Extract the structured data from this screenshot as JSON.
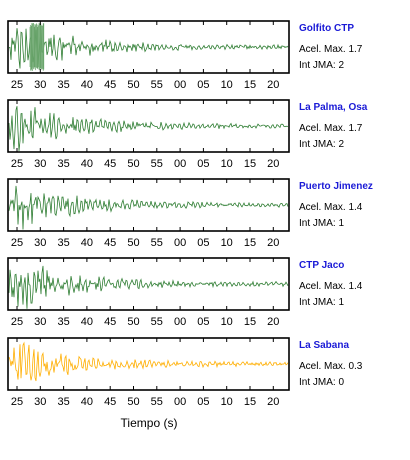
{
  "chart_data": [
    {
      "type": "line",
      "station": "Golfito CTP",
      "accel_label": "Acel. Max. 1.7",
      "jma_label": "Int JMA: 2",
      "color": "#2e7d32",
      "burst": "strong",
      "x_tick_labels": [
        "25",
        "30",
        "35",
        "40",
        "45",
        "50",
        "55",
        "00",
        "05",
        "10",
        "15",
        "20"
      ]
    },
    {
      "type": "line",
      "station": "La Palma, Osa",
      "accel_label": "Acel. Max. 1.7",
      "jma_label": "Int JMA: 2",
      "color": "#2e7d32",
      "burst": "medium",
      "x_tick_labels": [
        "25",
        "30",
        "35",
        "40",
        "45",
        "50",
        "55",
        "00",
        "05",
        "10",
        "15",
        "20"
      ]
    },
    {
      "type": "line",
      "station": "Puerto Jimenez",
      "accel_label": "Acel. Max. 1.4",
      "jma_label": "Int JMA: 1",
      "color": "#2e7d32",
      "burst": "medium",
      "x_tick_labels": [
        "25",
        "30",
        "35",
        "40",
        "45",
        "50",
        "55",
        "00",
        "05",
        "10",
        "15",
        "20"
      ]
    },
    {
      "type": "line",
      "station": "CTP Jaco",
      "accel_label": "Acel. Max. 1.4",
      "jma_label": "Int JMA: 1",
      "color": "#2e7d32",
      "burst": "medium",
      "x_tick_labels": [
        "25",
        "30",
        "35",
        "40",
        "45",
        "50",
        "55",
        "00",
        "05",
        "10",
        "15",
        "20"
      ]
    },
    {
      "type": "line",
      "station": "La Sabana",
      "accel_label": "Acel. Max. 0.3",
      "jma_label": "Int JMA: 0",
      "color": "#ffae00",
      "burst": "medium",
      "x_tick_labels": [
        "25",
        "30",
        "35",
        "40",
        "45",
        "50",
        "55",
        "00",
        "05",
        "10",
        "15",
        "20"
      ]
    }
  ],
  "xlabel": "Tiempo (s)"
}
